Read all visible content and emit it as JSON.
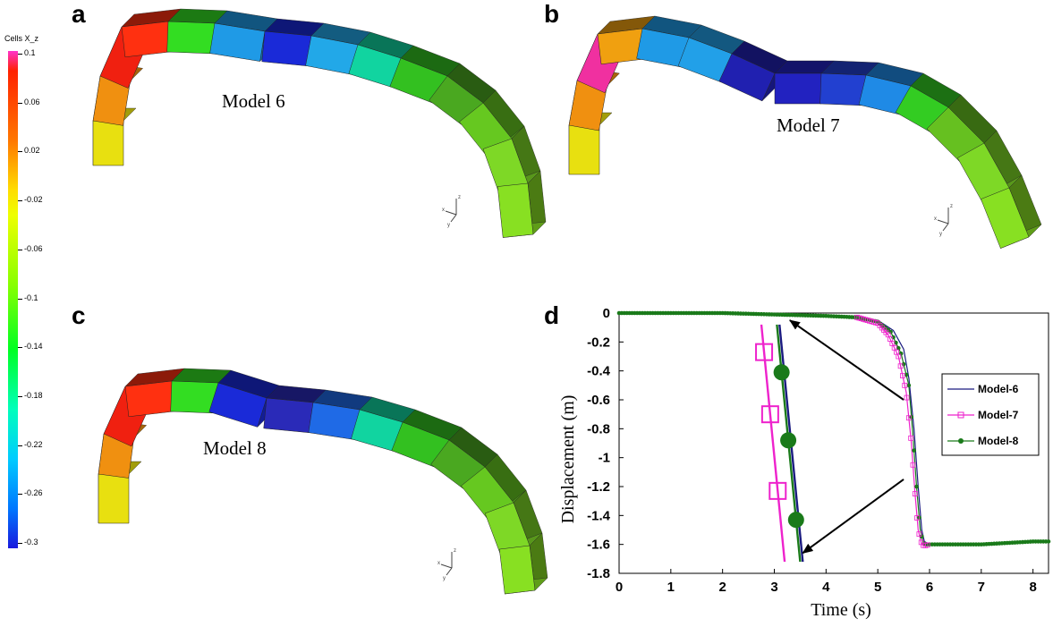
{
  "panels": {
    "a": {
      "letter": "a",
      "model": "Model 6"
    },
    "b": {
      "letter": "b",
      "model": "Model 7"
    },
    "c": {
      "letter": "c",
      "model": "Model 8"
    },
    "d": {
      "letter": "d"
    }
  },
  "colorbar": {
    "title": "Cells X_z",
    "ticks": [
      "0.1",
      "0.06",
      "0.02",
      "-0.02",
      "-0.06",
      "-0.1",
      "-0.14",
      "-0.18",
      "-0.22",
      "-0.26",
      "-0.3"
    ],
    "range": [
      -0.3,
      0.1
    ]
  },
  "axis_triad": {
    "x": "x",
    "y": "y",
    "z": "z"
  },
  "chart_data": {
    "type": "line",
    "xlabel": "Time (s)",
    "ylabel": "Displacement (m)",
    "xlim": [
      0,
      8.3
    ],
    "ylim": [
      -1.8,
      0
    ],
    "xticks": [
      0,
      1,
      2,
      3,
      4,
      5,
      6,
      7,
      8
    ],
    "yticks": [
      0,
      -0.2,
      -0.4,
      -0.6,
      -0.8,
      -1,
      -1.2,
      -1.4,
      -1.6,
      -1.8
    ],
    "ytick_labels": [
      "0",
      "-0.2",
      "-0.4",
      "-0.6",
      "-0.8",
      "-1",
      "-1.2",
      "-1.4",
      "-1.6",
      "-1.8"
    ],
    "grid": false,
    "legend_position": "right",
    "series": [
      {
        "name": "Model-6",
        "color": "#1a1a80",
        "marker": "none",
        "x": [
          0,
          2,
          3,
          4,
          4.6,
          5.0,
          5.3,
          5.5,
          5.6,
          5.7,
          5.78,
          5.85,
          5.9,
          6.0,
          6.5,
          7.0,
          7.5,
          8.0,
          8.3
        ],
        "y": [
          0,
          0,
          -0.01,
          -0.02,
          -0.03,
          -0.05,
          -0.12,
          -0.25,
          -0.45,
          -0.8,
          -1.2,
          -1.5,
          -1.58,
          -1.6,
          -1.6,
          -1.6,
          -1.59,
          -1.58,
          -1.58
        ]
      },
      {
        "name": "Model-7",
        "color": "#ee22cc",
        "marker": "open-square",
        "x": [
          0,
          2,
          3,
          4,
          4.6,
          5.0,
          5.2,
          5.4,
          5.55,
          5.65,
          5.72,
          5.78,
          5.85,
          5.9,
          6.0,
          6.5,
          7.0,
          7.5,
          8.0,
          8.3
        ],
        "y": [
          0,
          0,
          -0.01,
          -0.02,
          -0.03,
          -0.07,
          -0.15,
          -0.3,
          -0.55,
          -0.9,
          -1.25,
          -1.5,
          -1.6,
          -1.61,
          -1.6,
          -1.6,
          -1.6,
          -1.59,
          -1.58,
          -1.58
        ]
      },
      {
        "name": "Model-8",
        "color": "#1a7a1a",
        "marker": "filled-circle",
        "x": [
          0,
          2,
          3,
          4,
          4.6,
          5.0,
          5.25,
          5.45,
          5.6,
          5.68,
          5.75,
          5.82,
          5.88,
          5.95,
          6.0,
          6.5,
          7.0,
          7.5,
          8.0,
          8.3
        ],
        "y": [
          0,
          0,
          -0.01,
          -0.02,
          -0.03,
          -0.06,
          -0.13,
          -0.28,
          -0.5,
          -0.85,
          -1.2,
          -1.5,
          -1.59,
          -1.6,
          -1.6,
          -1.6,
          -1.6,
          -1.59,
          -1.58,
          -1.58
        ]
      }
    ],
    "inset": {
      "Model-6": {
        "color": "#1a1a80",
        "x": [
          3.1,
          3.55
        ],
        "y": [
          -0.08,
          -1.72
        ]
      },
      "Model-7": {
        "color": "#ee22cc",
        "x": [
          2.75,
          3.2
        ],
        "y": [
          -0.08,
          -1.72
        ]
      },
      "Model-8": {
        "color": "#1a7a1a",
        "x": [
          3.05,
          3.5
        ],
        "y": [
          -0.08,
          -1.72
        ]
      }
    }
  }
}
